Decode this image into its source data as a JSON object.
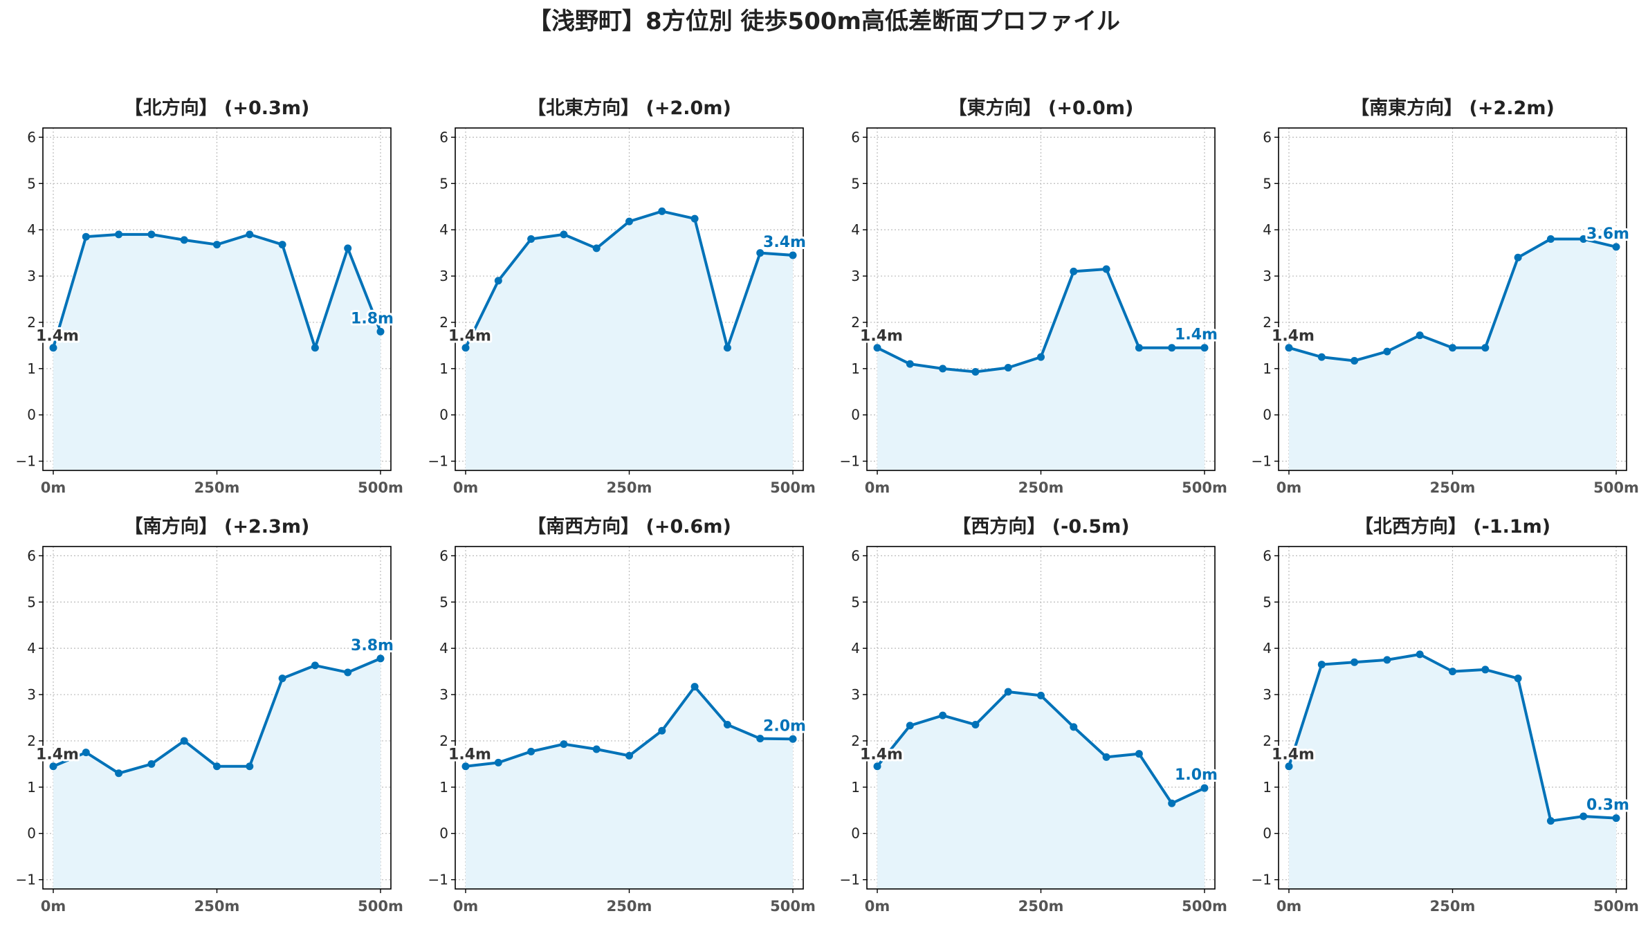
{
  "figure_title": "【浅野町】8方位別 徒歩500m高低差断面プロファイル",
  "colors": {
    "line": "#0072B8",
    "fill": "#E6F4FB",
    "grid": "#BBBBBB",
    "frame": "#000000"
  },
  "chart_data": [
    {
      "type": "area",
      "title": "【北方向】 (+0.3m)",
      "x": [
        0,
        50,
        100,
        150,
        200,
        250,
        300,
        350,
        400,
        450,
        500
      ],
      "values": [
        1.45,
        3.85,
        3.9,
        3.9,
        3.78,
        3.68,
        3.9,
        3.68,
        1.45,
        3.6,
        1.8
      ],
      "start_label": "1.4m",
      "end_label": "1.8m",
      "xticks": [
        "0m",
        "250m",
        "500m"
      ],
      "ylim": [
        -1.2,
        6.2
      ],
      "yticks": [
        "−1",
        "0",
        "1",
        "2",
        "3",
        "4",
        "5",
        "6"
      ],
      "grid": true
    },
    {
      "type": "area",
      "title": "【北東方向】 (+2.0m)",
      "x": [
        0,
        50,
        100,
        150,
        200,
        250,
        300,
        350,
        400,
        450,
        500
      ],
      "values": [
        1.45,
        2.9,
        3.8,
        3.9,
        3.6,
        4.18,
        4.4,
        4.24,
        1.45,
        3.5,
        3.45
      ],
      "start_label": "1.4m",
      "end_label": "3.4m",
      "xticks": [
        "0m",
        "250m",
        "500m"
      ],
      "ylim": [
        -1.2,
        6.2
      ],
      "yticks": [
        "−1",
        "0",
        "1",
        "2",
        "3",
        "4",
        "5",
        "6"
      ],
      "grid": true
    },
    {
      "type": "area",
      "title": "【東方向】 (+0.0m)",
      "x": [
        0,
        50,
        100,
        150,
        200,
        250,
        300,
        350,
        400,
        450,
        500
      ],
      "values": [
        1.45,
        1.1,
        1.0,
        0.93,
        1.02,
        1.25,
        3.1,
        3.15,
        1.45,
        1.45,
        1.45
      ],
      "start_label": "1.4m",
      "end_label": "1.4m",
      "xticks": [
        "0m",
        "250m",
        "500m"
      ],
      "ylim": [
        -1.2,
        6.2
      ],
      "yticks": [
        "−1",
        "0",
        "1",
        "2",
        "3",
        "4",
        "5",
        "6"
      ],
      "grid": true
    },
    {
      "type": "area",
      "title": "【南東方向】 (+2.2m)",
      "x": [
        0,
        50,
        100,
        150,
        200,
        250,
        300,
        350,
        400,
        450,
        500
      ],
      "values": [
        1.45,
        1.25,
        1.17,
        1.37,
        1.72,
        1.45,
        1.45,
        3.4,
        3.8,
        3.8,
        3.63
      ],
      "start_label": "1.4m",
      "end_label": "3.6m",
      "xticks": [
        "0m",
        "250m",
        "500m"
      ],
      "ylim": [
        -1.2,
        6.2
      ],
      "yticks": [
        "−1",
        "0",
        "1",
        "2",
        "3",
        "4",
        "5",
        "6"
      ],
      "grid": true
    },
    {
      "type": "area",
      "title": "【南方向】 (+2.3m)",
      "x": [
        0,
        50,
        100,
        150,
        200,
        250,
        300,
        350,
        400,
        450,
        500
      ],
      "values": [
        1.45,
        1.75,
        1.3,
        1.5,
        2.0,
        1.45,
        1.45,
        3.35,
        3.63,
        3.48,
        3.78
      ],
      "start_label": "1.4m",
      "end_label": "3.8m",
      "xticks": [
        "0m",
        "250m",
        "500m"
      ],
      "ylim": [
        -1.2,
        6.2
      ],
      "yticks": [
        "−1",
        "0",
        "1",
        "2",
        "3",
        "4",
        "5",
        "6"
      ],
      "grid": true
    },
    {
      "type": "area",
      "title": "【南西方向】 (+0.6m)",
      "x": [
        0,
        50,
        100,
        150,
        200,
        250,
        300,
        350,
        400,
        450,
        500
      ],
      "values": [
        1.45,
        1.53,
        1.77,
        1.93,
        1.82,
        1.68,
        2.22,
        3.17,
        2.35,
        2.05,
        2.04
      ],
      "start_label": "1.4m",
      "end_label": "2.0m",
      "xticks": [
        "0m",
        "250m",
        "500m"
      ],
      "ylim": [
        -1.2,
        6.2
      ],
      "yticks": [
        "−1",
        "0",
        "1",
        "2",
        "3",
        "4",
        "5",
        "6"
      ],
      "grid": true
    },
    {
      "type": "area",
      "title": "【西方向】 (-0.5m)",
      "x": [
        0,
        50,
        100,
        150,
        200,
        250,
        300,
        350,
        400,
        450,
        500
      ],
      "values": [
        1.45,
        2.33,
        2.55,
        2.35,
        3.06,
        2.98,
        2.3,
        1.65,
        1.72,
        0.65,
        0.98
      ],
      "start_label": "1.4m",
      "end_label": "1.0m",
      "xticks": [
        "0m",
        "250m",
        "500m"
      ],
      "ylim": [
        -1.2,
        6.2
      ],
      "yticks": [
        "−1",
        "0",
        "1",
        "2",
        "3",
        "4",
        "5",
        "6"
      ],
      "grid": true
    },
    {
      "type": "area",
      "title": "【北西方向】 (-1.1m)",
      "x": [
        0,
        50,
        100,
        150,
        200,
        250,
        300,
        350,
        400,
        450,
        500
      ],
      "values": [
        1.45,
        3.65,
        3.7,
        3.75,
        3.87,
        3.5,
        3.54,
        3.35,
        0.27,
        0.37,
        0.33
      ],
      "start_label": "1.4m",
      "end_label": "0.3m",
      "xticks": [
        "0m",
        "250m",
        "500m"
      ],
      "ylim": [
        -1.2,
        6.2
      ],
      "yticks": [
        "−1",
        "0",
        "1",
        "2",
        "3",
        "4",
        "5",
        "6"
      ],
      "grid": true
    }
  ]
}
